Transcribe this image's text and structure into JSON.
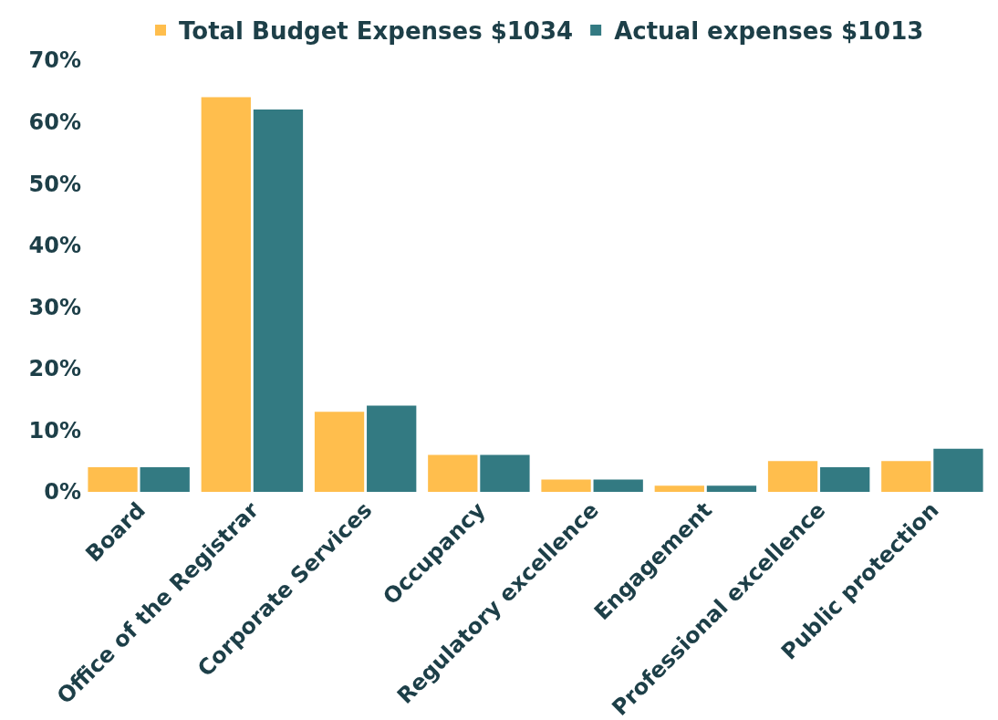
{
  "chart_data": {
    "type": "bar",
    "categories": [
      "Board",
      "Office of the Registrar",
      "Corporate Services",
      "Occupancy",
      "Regulatory excellence",
      "Engagement",
      "Professional excellence",
      "Public protection"
    ],
    "series": [
      {
        "name": "Total Budget Expenses $1034",
        "color": "#ffbe4d",
        "values": [
          4,
          64,
          13,
          6,
          2,
          1,
          5,
          5
        ]
      },
      {
        "name": "Actual expenses $1013",
        "color": "#337a82",
        "values": [
          4,
          62,
          14,
          6,
          2,
          1,
          4,
          7
        ]
      }
    ],
    "ylim": [
      0,
      70
    ],
    "yticks": [
      {
        "value": 0,
        "label": "0%"
      },
      {
        "value": 10,
        "label": "10%"
      },
      {
        "value": 20,
        "label": "20%"
      },
      {
        "value": 30,
        "label": "30%"
      },
      {
        "value": 40,
        "label": "40%"
      },
      {
        "value": 50,
        "label": "50%"
      },
      {
        "value": 60,
        "label": "60%"
      },
      {
        "value": 70,
        "label": "70%"
      }
    ],
    "grid": false,
    "legend": "top"
  }
}
